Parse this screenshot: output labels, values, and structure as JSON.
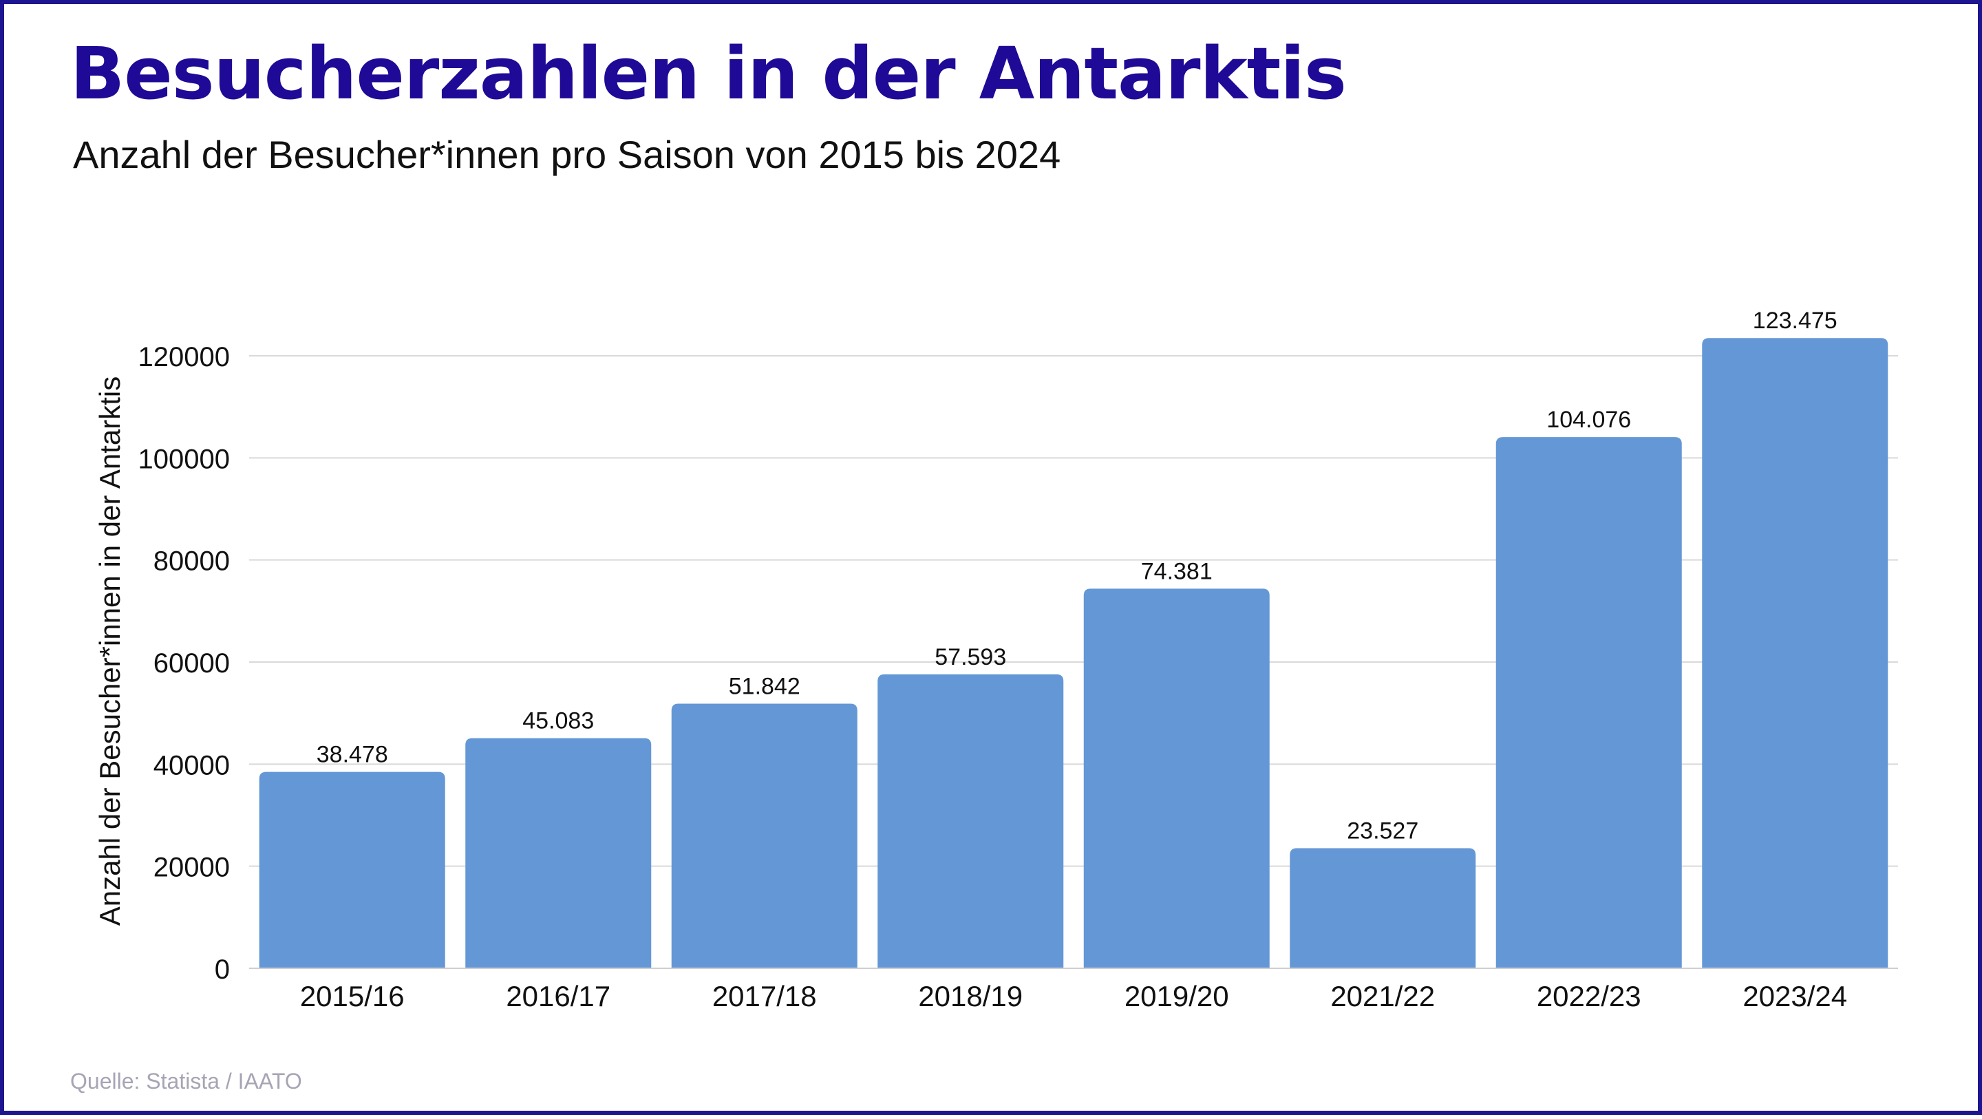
{
  "header": {
    "title": "Besucherzahlen in der Antarktis",
    "subtitle": "Anzahl der Besucher*innen pro Saison von 2015 bis 2024"
  },
  "footer": {
    "source": "Quelle: Statista / IAATO"
  },
  "colors": {
    "title": "#1e0a96",
    "border": "#1e1590",
    "bar": "#6497d5",
    "grid": "#d9d9d9",
    "source": "#a5a5b5"
  },
  "chart_data": {
    "type": "bar",
    "categories": [
      "2015/16",
      "2016/17",
      "2017/18",
      "2018/19",
      "2019/20",
      "2021/22",
      "2022/23",
      "2023/24"
    ],
    "values": [
      38478,
      45083,
      51842,
      57593,
      74381,
      23527,
      104076,
      123475
    ],
    "value_labels": [
      "38.478",
      "45.083",
      "51.842",
      "57.593",
      "74.381",
      "23.527",
      "104.076",
      "123.475"
    ],
    "ylabel": "Anzahl der Besucher*innen in der Antarktis",
    "xlabel": "",
    "ylim": [
      0,
      120000
    ],
    "yticks": [
      0,
      20000,
      40000,
      60000,
      80000,
      100000,
      120000
    ],
    "ytick_labels": [
      "0",
      "20000",
      "40000",
      "60000",
      "80000",
      "100000",
      "120000"
    ],
    "grid": true,
    "legend": "none"
  }
}
